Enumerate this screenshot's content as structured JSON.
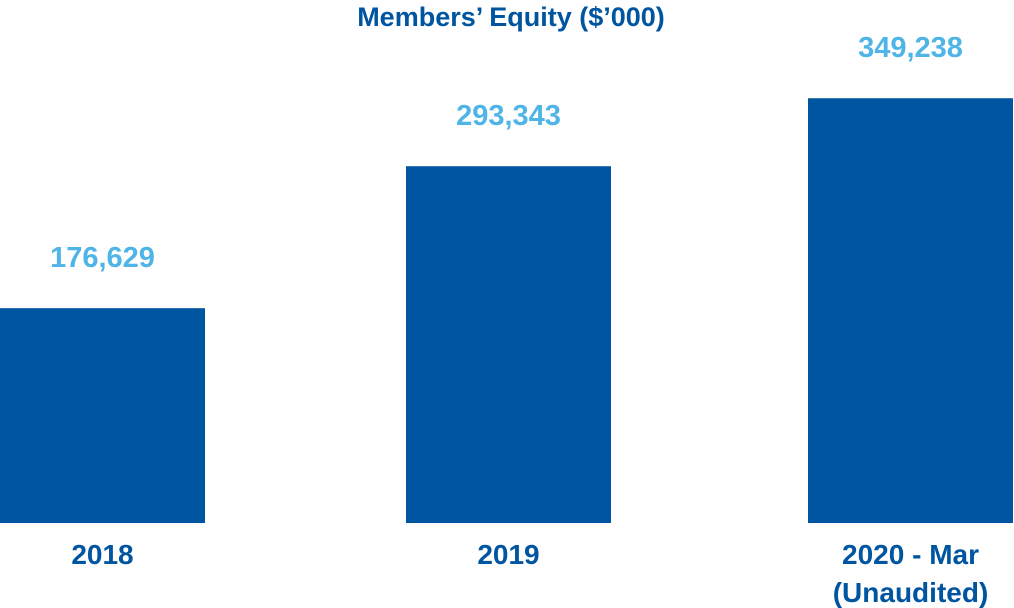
{
  "chart_data": {
    "type": "bar",
    "title": "Members’ Equity ($’000)",
    "categories": [
      [
        "2018"
      ],
      [
        "2019"
      ],
      [
        "2020 - Mar",
        "(Unaudited)"
      ]
    ],
    "values": [
      176629,
      293343,
      349238
    ],
    "value_labels": [
      "176,629",
      "293,343",
      "349,238"
    ],
    "xlabel": "",
    "ylabel": "",
    "ylim": [
      0,
      430000
    ],
    "grid": false,
    "colors": {
      "bar": "#0055A0",
      "value_label": "#4FB4E6",
      "category_label": "#0055A0",
      "title": "#0055A0"
    }
  }
}
